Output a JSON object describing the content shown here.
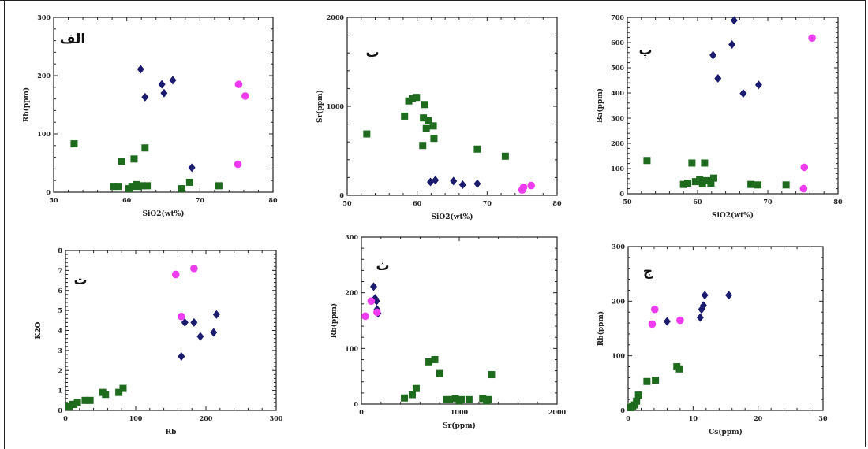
{
  "colors": {
    "navy": "#1a1a6e",
    "green": "#1e6b1e",
    "magenta": "#f03cf0"
  },
  "chart_data": [
    {
      "type": "scatter",
      "panel_label": "الف",
      "xlabel": "SiO2(wt%)",
      "ylabel": "Rb(ppm)",
      "xlim": [
        50,
        80
      ],
      "ylim": [
        0,
        300
      ],
      "xticks": [
        "50",
        "60",
        "70",
        "80"
      ],
      "yticks": [
        "0",
        "100",
        "200",
        "300"
      ],
      "series": [
        {
          "marker": "diamond",
          "color": "#1a1a6e",
          "points": [
            [
              61.9,
              211
            ],
            [
              62.5,
              163
            ],
            [
              64.8,
              185
            ],
            [
              65.1,
              170
            ],
            [
              66.3,
              192
            ],
            [
              68.9,
              42
            ]
          ]
        },
        {
          "marker": "square",
          "color": "#1e6b1e",
          "points": [
            [
              52.8,
              83
            ],
            [
              58.2,
              10
            ],
            [
              58.8,
              10
            ],
            [
              59.3,
              53
            ],
            [
              60.3,
              6
            ],
            [
              60.7,
              10
            ],
            [
              61.0,
              57
            ],
            [
              61.3,
              13
            ],
            [
              61.6,
              10
            ],
            [
              62.1,
              11
            ],
            [
              62.5,
              76
            ],
            [
              62.8,
              11
            ],
            [
              67.5,
              6
            ],
            [
              68.6,
              17
            ],
            [
              72.6,
              11
            ]
          ]
        },
        {
          "marker": "circle",
          "color": "#f03cf0",
          "points": [
            [
              75.3,
              185
            ],
            [
              76.2,
              165
            ],
            [
              75.2,
              48
            ]
          ]
        }
      ]
    },
    {
      "type": "scatter",
      "panel_label": "ب",
      "xlabel": "SiO2(wt%)",
      "ylabel": "Sr(ppm)",
      "xlim": [
        50,
        80
      ],
      "ylim": [
        0,
        2000
      ],
      "xticks": [
        "50",
        "60",
        "70",
        "80"
      ],
      "yticks": [
        "0",
        "1000",
        "2000"
      ],
      "series": [
        {
          "marker": "diamond",
          "color": "#1a1a6e",
          "points": [
            [
              61.9,
              150
            ],
            [
              62.6,
              170
            ],
            [
              65.2,
              160
            ],
            [
              66.5,
              120
            ],
            [
              68.6,
              130
            ]
          ]
        },
        {
          "marker": "square",
          "color": "#1e6b1e",
          "points": [
            [
              52.8,
              690
            ],
            [
              58.2,
              890
            ],
            [
              58.8,
              1060
            ],
            [
              59.3,
              1090
            ],
            [
              59.9,
              1100
            ],
            [
              60.9,
              870
            ],
            [
              60.8,
              560
            ],
            [
              61.1,
              1020
            ],
            [
              61.3,
              750
            ],
            [
              61.6,
              840
            ],
            [
              62.3,
              780
            ],
            [
              62.4,
              640
            ],
            [
              68.6,
              520
            ],
            [
              72.6,
              440
            ]
          ]
        },
        {
          "marker": "circle",
          "color": "#f03cf0",
          "points": [
            [
              75.0,
              60
            ],
            [
              75.2,
              90
            ],
            [
              76.3,
              110
            ]
          ]
        }
      ]
    },
    {
      "type": "scatter",
      "panel_label": "پ",
      "xlabel": "SiO2(wt%)",
      "ylabel": "Ba(ppm)",
      "xlim": [
        50,
        80
      ],
      "ylim": [
        0,
        700
      ],
      "xticks": [
        "50",
        "60",
        "70",
        "80"
      ],
      "yticks": [
        "0",
        "100",
        "200",
        "300",
        "400",
        "500",
        "600",
        "700"
      ],
      "series": [
        {
          "marker": "diamond",
          "color": "#1a1a6e",
          "points": [
            [
              62.2,
              550
            ],
            [
              62.9,
              458
            ],
            [
              64.9,
              592
            ],
            [
              65.2,
              688
            ],
            [
              66.5,
              398
            ],
            [
              68.7,
              432
            ]
          ]
        },
        {
          "marker": "square",
          "color": "#1e6b1e",
          "points": [
            [
              52.8,
              132
            ],
            [
              58.0,
              37
            ],
            [
              58.6,
              42
            ],
            [
              59.2,
              122
            ],
            [
              59.7,
              48
            ],
            [
              60.3,
              55
            ],
            [
              60.7,
              40
            ],
            [
              61.0,
              122
            ],
            [
              61.3,
              52
            ],
            [
              61.9,
              42
            ],
            [
              62.3,
              62
            ],
            [
              67.6,
              37
            ],
            [
              68.6,
              35
            ],
            [
              72.6,
              35
            ]
          ]
        },
        {
          "marker": "circle",
          "color": "#f03cf0",
          "points": [
            [
              75.2,
              105
            ],
            [
              75.1,
              20
            ],
            [
              76.3,
              618
            ]
          ]
        }
      ]
    },
    {
      "type": "scatter",
      "panel_label": "ت",
      "xlabel": "Rb",
      "ylabel": "K2O",
      "xlim": [
        0,
        300
      ],
      "ylim": [
        0,
        8
      ],
      "xticks": [
        "0",
        "100",
        "200",
        "300"
      ],
      "yticks": [
        "0",
        "1",
        "2",
        "3",
        "4",
        "5",
        "6",
        "7",
        "8"
      ],
      "series": [
        {
          "marker": "diamond",
          "color": "#1a1a6e",
          "points": [
            [
              165,
              2.7
            ],
            [
              170,
              4.4
            ],
            [
              183,
              4.4
            ],
            [
              192,
              3.7
            ],
            [
              211,
              3.9
            ],
            [
              215,
              4.8
            ]
          ]
        },
        {
          "marker": "square",
          "color": "#1e6b1e",
          "points": [
            [
              5,
              0.2
            ],
            [
              10,
              0.3
            ],
            [
              12,
              0.3
            ],
            [
              17,
              0.4
            ],
            [
              28,
              0.5
            ],
            [
              35,
              0.5
            ],
            [
              53,
              0.9
            ],
            [
              57,
              0.8
            ],
            [
              76,
              0.9
            ],
            [
              82,
              1.1
            ]
          ]
        },
        {
          "marker": "circle",
          "color": "#f03cf0",
          "points": [
            [
              157,
              6.8
            ],
            [
              165,
              4.7
            ],
            [
              183,
              7.1
            ]
          ]
        }
      ]
    },
    {
      "type": "scatter",
      "panel_label": "ث",
      "xlabel": "Sr(ppm)",
      "ylabel": "Rb(ppm)",
      "xlim": [
        0,
        2000
      ],
      "ylim": [
        0,
        300
      ],
      "xticks": [
        "0",
        "1000",
        "2000"
      ],
      "yticks": [
        "0",
        "100",
        "200",
        "300"
      ],
      "series": [
        {
          "marker": "diamond",
          "color": "#1a1a6e",
          "points": [
            [
              125,
              211
            ],
            [
              140,
              190
            ],
            [
              155,
              185
            ],
            [
              170,
              163
            ],
            [
              160,
              170
            ]
          ]
        },
        {
          "marker": "square",
          "color": "#1e6b1e",
          "points": [
            [
              440,
              11
            ],
            [
              520,
              17
            ],
            [
              560,
              28
            ],
            [
              690,
              76
            ],
            [
              750,
              80
            ],
            [
              800,
              55
            ],
            [
              870,
              8
            ],
            [
              1020,
              8
            ],
            [
              1100,
              8
            ],
            [
              900,
              8
            ],
            [
              960,
              10
            ],
            [
              1000,
              6
            ],
            [
              1240,
              10
            ],
            [
              1280,
              6
            ],
            [
              1330,
              53
            ],
            [
              1300,
              8
            ]
          ]
        },
        {
          "marker": "circle",
          "color": "#f03cf0",
          "points": [
            [
              40,
              158
            ],
            [
              100,
              185
            ],
            [
              160,
              165
            ]
          ]
        }
      ]
    },
    {
      "type": "scatter",
      "panel_label": "ج",
      "xlabel": "Cs(ppm)",
      "ylabel": "Rb(ppm)",
      "xlim": [
        0,
        30
      ],
      "ylim": [
        0,
        300
      ],
      "xticks": [
        "0",
        "10",
        "20",
        "30"
      ],
      "yticks": [
        "0",
        "100",
        "200",
        "300"
      ],
      "series": [
        {
          "marker": "diamond",
          "color": "#1a1a6e",
          "points": [
            [
              6.0,
              163
            ],
            [
              11.1,
              170
            ],
            [
              11.3,
              185
            ],
            [
              11.6,
              192
            ],
            [
              11.8,
              211
            ],
            [
              15.5,
              211
            ]
          ]
        },
        {
          "marker": "square",
          "color": "#1e6b1e",
          "points": [
            [
              0.4,
              5
            ],
            [
              0.7,
              8
            ],
            [
              1.0,
              10
            ],
            [
              1.3,
              17
            ],
            [
              1.6,
              28
            ],
            [
              2.9,
              53
            ],
            [
              4.2,
              55
            ],
            [
              7.5,
              80
            ],
            [
              7.9,
              76
            ]
          ]
        },
        {
          "marker": "circle",
          "color": "#f03cf0",
          "points": [
            [
              3.7,
              158
            ],
            [
              4.1,
              185
            ],
            [
              8.0,
              165
            ]
          ]
        }
      ]
    }
  ]
}
